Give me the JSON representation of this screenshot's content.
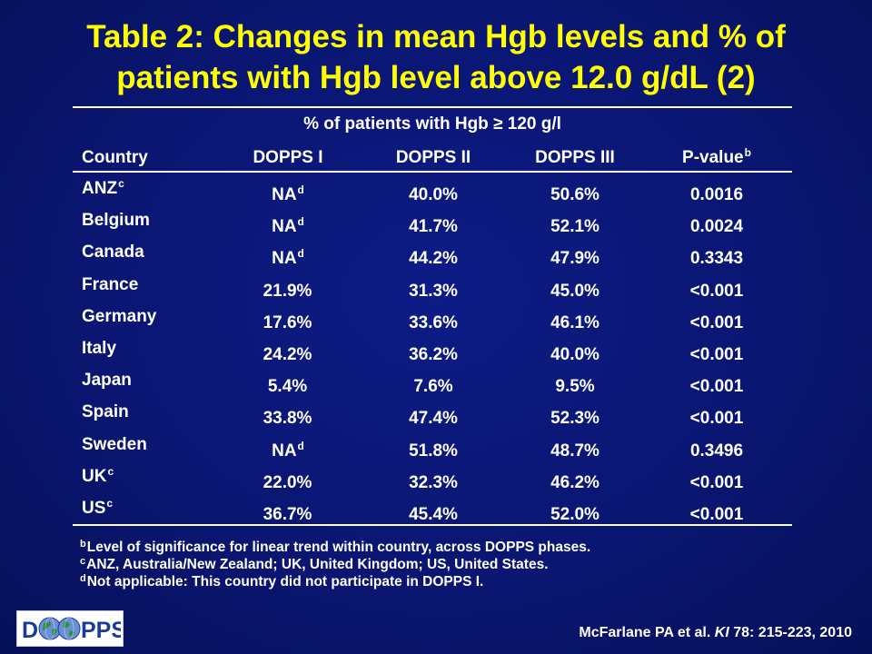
{
  "title": {
    "line1": "Table 2: Changes in mean Hgb levels and % of",
    "line2": "patients with Hgb level above 12.0 g/dL (2)"
  },
  "table": {
    "subheader": "% of patients with Hgb ≥ 120 g/l",
    "columns": [
      "Country",
      "DOPPS I",
      "DOPPS II",
      "DOPPS III",
      "P-value"
    ],
    "pvalue_sup": "b",
    "rows": [
      {
        "country": "ANZ",
        "sup": "c",
        "d1": "NA",
        "d1_sup": "d",
        "d2": "40.0%",
        "d3": "50.6%",
        "p": "0.0016"
      },
      {
        "country": "Belgium",
        "sup": "",
        "d1": "NA",
        "d1_sup": "d",
        "d2": "41.7%",
        "d3": "52.1%",
        "p": "0.0024"
      },
      {
        "country": "Canada",
        "sup": "",
        "d1": "NA",
        "d1_sup": "d",
        "d2": "44.2%",
        "d3": "47.9%",
        "p": "0.3343"
      },
      {
        "country": "France",
        "sup": "",
        "d1": "21.9%",
        "d1_sup": "",
        "d2": "31.3%",
        "d3": "45.0%",
        "p": "<0.001"
      },
      {
        "country": "Germany",
        "sup": "",
        "d1": "17.6%",
        "d1_sup": "",
        "d2": "33.6%",
        "d3": "46.1%",
        "p": "<0.001"
      },
      {
        "country": "Italy",
        "sup": "",
        "d1": "24.2%",
        "d1_sup": "",
        "d2": "36.2%",
        "d3": "40.0%",
        "p": "<0.001"
      },
      {
        "country": "Japan",
        "sup": "",
        "d1": "5.4%",
        "d1_sup": "",
        "d2": "7.6%",
        "d3": "9.5%",
        "p": "<0.001"
      },
      {
        "country": "Spain",
        "sup": "",
        "d1": "33.8%",
        "d1_sup": "",
        "d2": "47.4%",
        "d3": "52.3%",
        "p": "<0.001"
      },
      {
        "country": "Sweden",
        "sup": "",
        "d1": "NA",
        "d1_sup": "d",
        "d2": "51.8%",
        "d3": "48.7%",
        "p": "0.3496"
      },
      {
        "country": "UK",
        "sup": "c",
        "d1": "22.0%",
        "d1_sup": "",
        "d2": "32.3%",
        "d3": "46.2%",
        "p": "<0.001"
      },
      {
        "country": "US",
        "sup": "c",
        "d1": "36.7%",
        "d1_sup": "",
        "d2": "45.4%",
        "d3": "52.0%",
        "p": "<0.001"
      }
    ]
  },
  "footnotes": [
    {
      "mark": "b",
      "text": "Level of significance for linear trend within country, across DOPPS phases."
    },
    {
      "mark": "c",
      "text": "ANZ, Australia/New Zealand; UK, United Kingdom; US, United States."
    },
    {
      "mark": "d",
      "text": "Not applicable: This country did not participate in DOPPS I."
    }
  ],
  "logo": {
    "text_left": "D",
    "text_right": "PPS",
    "icon": "globe-icon"
  },
  "citation": {
    "authors": "McFarlane PA et al.",
    "journal": "KI",
    "details": "78: 215-223, 2010"
  },
  "colors": {
    "background": "#0a1672",
    "title": "#ffff00",
    "text": "#ffffff",
    "logo_blue": "#1a3a9c"
  }
}
